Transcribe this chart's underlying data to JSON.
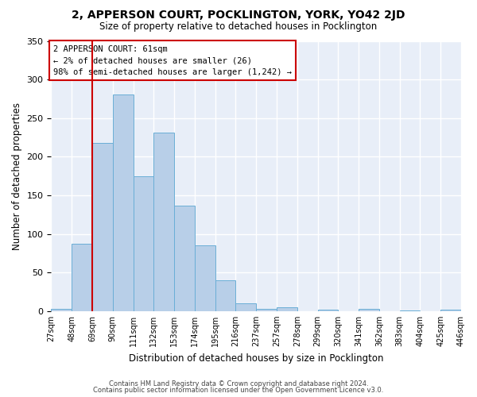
{
  "title1": "2, APPERSON COURT, POCKLINGTON, YORK, YO42 2JD",
  "title2": "Size of property relative to detached houses in Pocklington",
  "xlabel": "Distribution of detached houses by size in Pocklington",
  "ylabel": "Number of detached properties",
  "footer1": "Contains HM Land Registry data © Crown copyright and database right 2024.",
  "footer2": "Contains public sector information licensed under the Open Government Licence v3.0.",
  "annotation_line1": "2 APPERSON COURT: 61sqm",
  "annotation_line2": "← 2% of detached houses are smaller (26)",
  "annotation_line3": "98% of semi-detached houses are larger (1,242) →",
  "bar_values": [
    3,
    87,
    218,
    281,
    175,
    231,
    137,
    85,
    40,
    10,
    3,
    5,
    0,
    2,
    0,
    3,
    0,
    1,
    0,
    2
  ],
  "bin_labels": [
    "27sqm",
    "48sqm",
    "69sqm",
    "90sqm",
    "111sqm",
    "132sqm",
    "153sqm",
    "174sqm",
    "195sqm",
    "216sqm",
    "237sqm",
    "257sqm",
    "278sqm",
    "299sqm",
    "320sqm",
    "341sqm",
    "362sqm",
    "383sqm",
    "404sqm",
    "425sqm",
    "446sqm"
  ],
  "bar_color": "#b8cfe8",
  "bar_edge_color": "#6aaed6",
  "red_line_x": 1.5,
  "ylim": [
    0,
    350
  ],
  "yticks": [
    0,
    50,
    100,
    150,
    200,
    250,
    300,
    350
  ],
  "background_color": "#e8eef8",
  "grid_color": "#ffffff",
  "annotation_box_color": "#ffffff",
  "annotation_box_edge": "#cc0000",
  "red_line_color": "#cc0000",
  "fig_bg": "#ffffff"
}
